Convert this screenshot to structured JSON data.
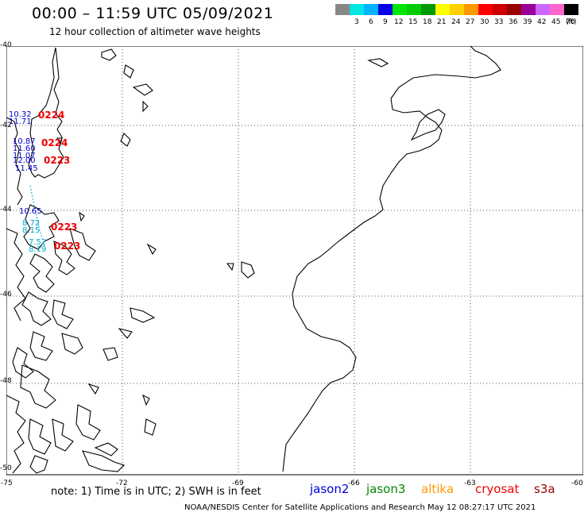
{
  "title": "00:00 – 11:59 UTC 05/09/2021",
  "subtitle": "12 hour collection of altimeter wave heights",
  "legend": {
    "unit": "(ft)",
    "swatches": [
      {
        "color": "#888888",
        "label": ""
      },
      {
        "color": "#00e5e5",
        "label": "3"
      },
      {
        "color": "#00b3ff",
        "label": "6"
      },
      {
        "color": "#0000e6",
        "label": "9"
      },
      {
        "color": "#00e600",
        "label": "12"
      },
      {
        "color": "#00cc00",
        "label": "15"
      },
      {
        "color": "#009900",
        "label": "18"
      },
      {
        "color": "#ffff00",
        "label": "21"
      },
      {
        "color": "#ffd000",
        "label": "24"
      },
      {
        "color": "#ff9900",
        "label": "27"
      },
      {
        "color": "#ff0000",
        "label": "30"
      },
      {
        "color": "#cc0000",
        "label": "33"
      },
      {
        "color": "#990000",
        "label": "36"
      },
      {
        "color": "#990099",
        "label": "39"
      },
      {
        "color": "#cc66ff",
        "label": "42"
      },
      {
        "color": "#ff66cc",
        "label": "45"
      },
      {
        "color": "#000000",
        "label": "70"
      }
    ]
  },
  "axes": {
    "lat_labels": [
      "-40",
      "-42",
      "-44",
      "-46",
      "-48",
      "-50"
    ],
    "lon_labels": [
      "-75",
      "-72",
      "-69",
      "-66",
      "-63",
      "-60"
    ]
  },
  "observations": {
    "swh": [
      {
        "text": "10.32",
        "tone": "blue"
      },
      {
        "text": "11.71",
        "tone": "blue"
      },
      {
        "text": "10.87",
        "tone": "blue"
      },
      {
        "text": "11.60",
        "tone": "blue"
      },
      {
        "text": "11.07",
        "tone": "blue"
      },
      {
        "text": "12.00",
        "tone": "blue"
      },
      {
        "text": "11.45",
        "tone": "blue"
      },
      {
        "text": "10.65",
        "tone": "blue"
      },
      {
        "text": "8.72",
        "tone": "cyan"
      },
      {
        "text": "8.15",
        "tone": "cyan"
      },
      {
        "text": "7.52",
        "tone": "cyan"
      },
      {
        "text": "8.19",
        "tone": "cyan"
      }
    ],
    "times": [
      "0224",
      "0224",
      "0223",
      "0223",
      "0223"
    ]
  },
  "note": "note:  1) Time is in UTC;  2) SWH is in feet",
  "satellites": [
    {
      "name": "jason2",
      "color": "#0000dd"
    },
    {
      "name": "jason3",
      "color": "#008800"
    },
    {
      "name": "altika",
      "color": "#ff9900"
    },
    {
      "name": "cryosat",
      "color": "#ee0000"
    },
    {
      "name": "s3a",
      "color": "#990000"
    }
  ],
  "credit": "NOAA/NESDIS Center for Satellite Applications and Research    May 12 08:27:17 UTC 2021"
}
